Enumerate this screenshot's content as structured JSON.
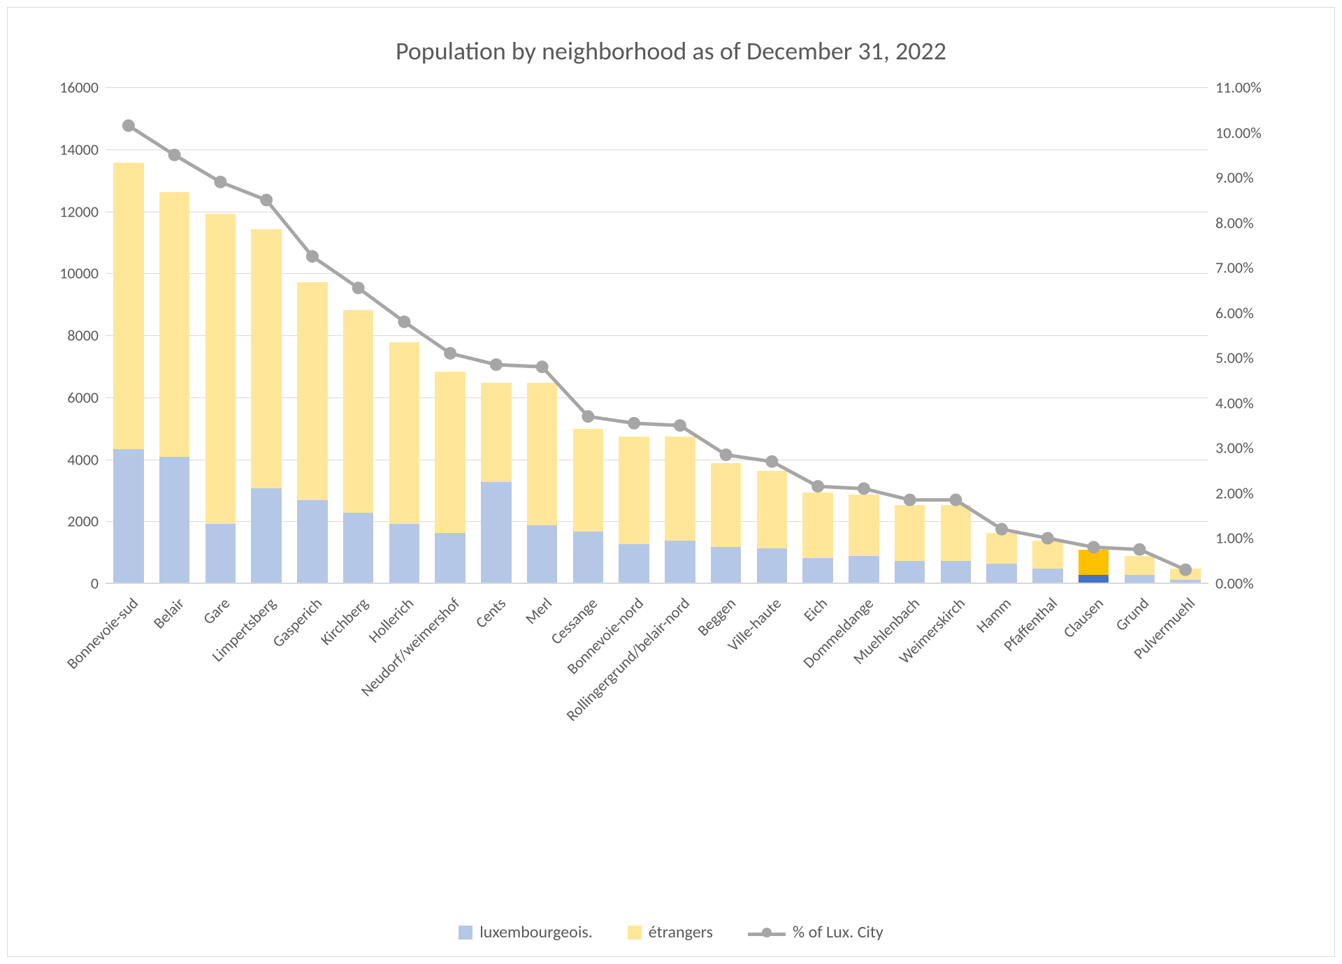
{
  "chart": {
    "type": "stacked-bar-with-line",
    "title": "Population by neighborhood as of December 31, 2022",
    "title_fontsize": 36,
    "title_color": "#595959",
    "label_fontsize": 22,
    "label_color": "#595959",
    "background_color": "#ffffff",
    "border_color": "#d9d9d9",
    "grid_color": "#d9d9d9",
    "bar_width": 0.66,
    "categories": [
      "Bonnevoie-sud",
      "Belair",
      "Gare",
      "Limpertsberg",
      "Gasperich",
      "Kirchberg",
      "Hollerich",
      "Neudorf/weimershof",
      "Cents",
      "Merl",
      "Cessange",
      "Bonnevoie-nord",
      "Rollingergrund/belair-nord",
      "Beggen",
      "Ville-haute",
      "Eich",
      "Dommeldange",
      "Muehlenbach",
      "Weimerskirch",
      "Hamm",
      "Pfaffenthal",
      "Clausen",
      "Grund",
      "Pulvermuehl"
    ],
    "series": [
      {
        "name": "luxembourgeois.",
        "color": "#b4c7e7",
        "values": [
          4300,
          4050,
          1900,
          3050,
          2650,
          2250,
          1900,
          1600,
          3250,
          1850,
          1650,
          1250,
          1350,
          1150,
          1100,
          800,
          850,
          700,
          700,
          600,
          450,
          250,
          250,
          100
        ]
      },
      {
        "name": "étrangers",
        "color": "#ffe699",
        "values": [
          9250,
          8550,
          10000,
          8350,
          7050,
          6550,
          5850,
          5200,
          3200,
          4600,
          3300,
          3450,
          3350,
          2700,
          2500,
          2100,
          2000,
          1800,
          1800,
          1000,
          900,
          800,
          600,
          350
        ]
      }
    ],
    "accent_bar": {
      "category_index": 21,
      "series_index": 0,
      "bottom_color": "#4472c4",
      "top_color": "#ffc000"
    },
    "left_axis": {
      "min": 0,
      "max": 16000,
      "step": 2000,
      "format": "integer"
    },
    "line_series": {
      "name": "% of Lux. City",
      "color": "#a6a6a6",
      "marker_radius": 9,
      "line_width": 5,
      "values": [
        10.15,
        9.5,
        8.9,
        8.5,
        7.25,
        6.55,
        5.8,
        5.1,
        4.85,
        4.8,
        3.7,
        3.55,
        3.5,
        2.85,
        2.7,
        2.15,
        2.1,
        1.85,
        1.85,
        1.2,
        1.0,
        0.8,
        0.75,
        0.3
      ]
    },
    "right_axis": {
      "min": 0,
      "max": 11.0,
      "step": 1.0,
      "format": "percent2"
    },
    "legend_fontsize": 24
  }
}
